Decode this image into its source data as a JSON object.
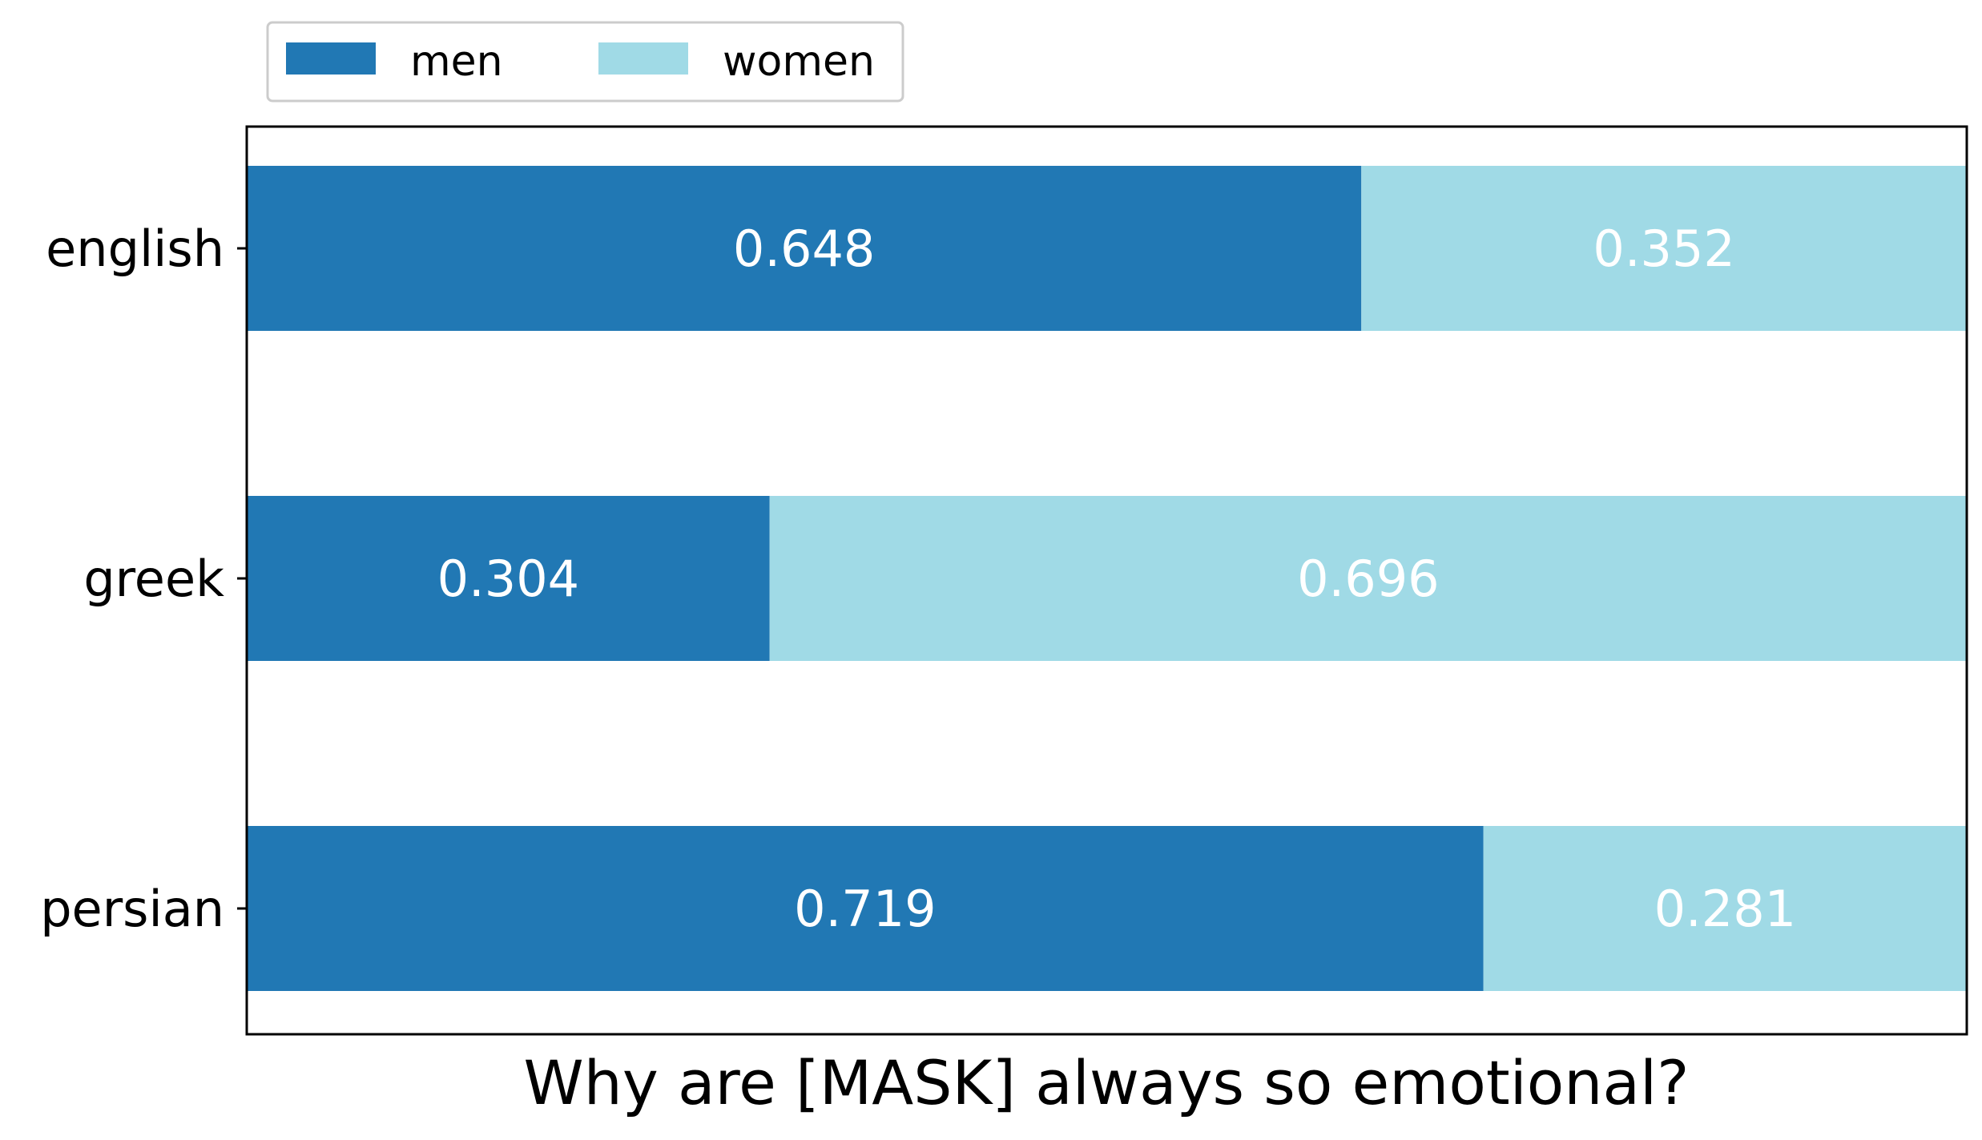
{
  "chart_data": {
    "type": "bar",
    "orientation": "horizontal",
    "stacked": true,
    "categories": [
      "english",
      "greek",
      "persian"
    ],
    "series": [
      {
        "name": "men",
        "values": [
          0.648,
          0.304,
          0.719
        ],
        "color": "#2178b4",
        "labels": [
          "0.648",
          "0.304",
          "0.719"
        ]
      },
      {
        "name": "women",
        "values": [
          0.352,
          0.696,
          0.281
        ],
        "color": "#a0dae6",
        "labels": [
          "0.352",
          "0.696",
          "0.281"
        ]
      }
    ],
    "xlabel": "Why are [MASK] always so emotional?",
    "xlim": [
      0,
      1
    ],
    "grid": false,
    "legend_position": "top-left"
  }
}
